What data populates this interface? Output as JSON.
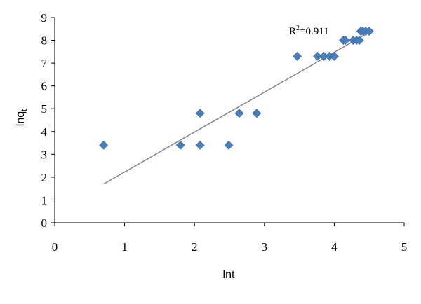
{
  "chart_data": {
    "type": "scatter",
    "xlabel": "lnt",
    "ylabel_main": "lnq",
    "ylabel_sub": "t",
    "xlim": [
      0,
      5
    ],
    "ylim": [
      0,
      9
    ],
    "x_ticks": [
      "0",
      "1",
      "2",
      "3",
      "4",
      "5"
    ],
    "y_ticks": [
      "0",
      "1",
      "2",
      "3",
      "4",
      "5",
      "6",
      "7",
      "8",
      "9"
    ],
    "grid": false,
    "marker_color": "#4a7ebb",
    "trendline_color": "#7f7f7f",
    "annotation": {
      "text_main": "R",
      "text_sup": "2",
      "text_rest": "=0.911"
    },
    "trendline": {
      "x": [
        0.7,
        4.5
      ],
      "y": [
        1.7,
        8.35
      ]
    },
    "points": [
      {
        "x": 0.7,
        "y": 3.4
      },
      {
        "x": 1.8,
        "y": 3.4
      },
      {
        "x": 2.08,
        "y": 3.4
      },
      {
        "x": 2.08,
        "y": 4.8
      },
      {
        "x": 2.49,
        "y": 3.4
      },
      {
        "x": 2.64,
        "y": 4.8
      },
      {
        "x": 2.89,
        "y": 4.8
      },
      {
        "x": 3.47,
        "y": 7.3
      },
      {
        "x": 3.76,
        "y": 7.3
      },
      {
        "x": 3.85,
        "y": 7.3
      },
      {
        "x": 3.93,
        "y": 7.3
      },
      {
        "x": 4.0,
        "y": 7.3
      },
      {
        "x": 4.13,
        "y": 8.0
      },
      {
        "x": 4.16,
        "y": 8.0
      },
      {
        "x": 4.27,
        "y": 8.0
      },
      {
        "x": 4.32,
        "y": 8.0
      },
      {
        "x": 4.36,
        "y": 8.0
      },
      {
        "x": 4.38,
        "y": 8.4
      },
      {
        "x": 4.41,
        "y": 8.4
      },
      {
        "x": 4.45,
        "y": 8.4
      },
      {
        "x": 4.5,
        "y": 8.4
      }
    ]
  }
}
